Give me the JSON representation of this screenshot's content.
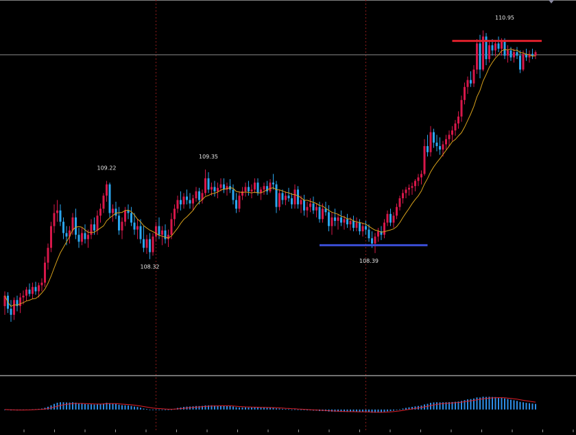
{
  "chart_data": [
    {
      "type": "candlestick",
      "title": "",
      "ylim": [
        107.0,
        111.3
      ],
      "up_color": "#d8174a",
      "down_color": "#2aa6ef",
      "ma_color": "#d9a21b",
      "current_price_line": 110.67,
      "annotations": [
        {
          "text": "109.22",
          "value": 109.22,
          "index": 33,
          "position": "above"
        },
        {
          "text": "108.32",
          "value": 108.32,
          "index": 47,
          "position": "below"
        },
        {
          "text": "109.35",
          "value": 109.35,
          "index": 66,
          "position": "above"
        },
        {
          "text": "108.39",
          "value": 108.39,
          "index": 118,
          "position": "below"
        },
        {
          "text": "110.95",
          "value": 110.95,
          "index": 162,
          "position": "above"
        }
      ],
      "level_lines": [
        {
          "name": "resistance",
          "value": 110.83,
          "from": 145,
          "to": 174,
          "color": "#e0202b"
        },
        {
          "name": "support",
          "value": 108.48,
          "from": 102,
          "to": 137,
          "color": "#3b4ed8"
        }
      ],
      "session_separators": [
        49,
        117
      ],
      "ohlc": [
        [
          107.78,
          107.95,
          107.68,
          107.9
        ],
        [
          107.9,
          107.94,
          107.7,
          107.75
        ],
        [
          107.75,
          107.85,
          107.6,
          107.68
        ],
        [
          107.68,
          107.88,
          107.62,
          107.85
        ],
        [
          107.85,
          107.9,
          107.72,
          107.78
        ],
        [
          107.78,
          107.93,
          107.7,
          107.88
        ],
        [
          107.88,
          107.96,
          107.8,
          107.9
        ],
        [
          107.9,
          108.0,
          107.84,
          107.97
        ],
        [
          107.97,
          108.04,
          107.89,
          107.92
        ],
        [
          107.92,
          108.05,
          107.86,
          108.0
        ],
        [
          108.0,
          108.06,
          107.91,
          107.95
        ],
        [
          107.95,
          108.05,
          107.88,
          108.02
        ],
        [
          108.02,
          108.1,
          107.95,
          108.05
        ],
        [
          108.05,
          108.35,
          108.0,
          108.28
        ],
        [
          108.28,
          108.5,
          108.2,
          108.45
        ],
        [
          108.45,
          108.75,
          108.4,
          108.7
        ],
        [
          108.7,
          108.95,
          108.62,
          108.85
        ],
        [
          108.85,
          109.0,
          108.75,
          108.88
        ],
        [
          108.88,
          108.95,
          108.7,
          108.75
        ],
        [
          108.75,
          108.8,
          108.55,
          108.62
        ],
        [
          108.62,
          108.7,
          108.48,
          108.58
        ],
        [
          108.58,
          108.7,
          108.5,
          108.65
        ],
        [
          108.65,
          108.85,
          108.6,
          108.8
        ],
        [
          108.8,
          108.9,
          108.55,
          108.6
        ],
        [
          108.6,
          108.68,
          108.45,
          108.52
        ],
        [
          108.52,
          108.68,
          108.48,
          108.62
        ],
        [
          108.62,
          108.72,
          108.5,
          108.55
        ],
        [
          108.55,
          108.66,
          108.45,
          108.6
        ],
        [
          108.6,
          108.78,
          108.55,
          108.72
        ],
        [
          108.72,
          108.8,
          108.6,
          108.65
        ],
        [
          108.65,
          108.88,
          108.6,
          108.82
        ],
        [
          108.82,
          108.96,
          108.74,
          108.9
        ],
        [
          108.9,
          109.08,
          108.85,
          109.05
        ],
        [
          109.05,
          109.22,
          108.98,
          109.18
        ],
        [
          109.18,
          109.2,
          108.8,
          108.85
        ],
        [
          108.85,
          108.95,
          108.75,
          108.9
        ],
        [
          108.9,
          108.98,
          108.78,
          108.82
        ],
        [
          108.82,
          108.92,
          108.6,
          108.65
        ],
        [
          108.65,
          108.8,
          108.55,
          108.75
        ],
        [
          108.75,
          108.92,
          108.7,
          108.88
        ],
        [
          108.88,
          108.95,
          108.78,
          108.85
        ],
        [
          108.85,
          108.92,
          108.7,
          108.74
        ],
        [
          108.74,
          108.85,
          108.6,
          108.66
        ],
        [
          108.66,
          108.78,
          108.55,
          108.7
        ],
        [
          108.7,
          108.78,
          108.5,
          108.55
        ],
        [
          108.55,
          108.7,
          108.4,
          108.45
        ],
        [
          108.45,
          108.6,
          108.38,
          108.55
        ],
        [
          108.55,
          108.62,
          108.32,
          108.4
        ],
        [
          108.4,
          108.62,
          108.36,
          108.58
        ],
        [
          108.58,
          108.75,
          108.52,
          108.7
        ],
        [
          108.7,
          108.8,
          108.55,
          108.6
        ],
        [
          108.6,
          108.7,
          108.48,
          108.65
        ],
        [
          108.65,
          108.72,
          108.5,
          108.55
        ],
        [
          108.55,
          108.66,
          108.46,
          108.6
        ],
        [
          108.6,
          108.85,
          108.55,
          108.78
        ],
        [
          108.78,
          108.95,
          108.7,
          108.9
        ],
        [
          108.9,
          109.05,
          108.85,
          109.0
        ],
        [
          109.0,
          109.1,
          108.88,
          108.95
        ],
        [
          108.95,
          109.08,
          108.9,
          109.04
        ],
        [
          109.04,
          109.12,
          108.95,
          109.0
        ],
        [
          109.0,
          109.08,
          108.9,
          108.96
        ],
        [
          108.96,
          109.06,
          108.88,
          109.02
        ],
        [
          109.02,
          109.15,
          108.98,
          109.1
        ],
        [
          109.1,
          109.14,
          108.95,
          109.0
        ],
        [
          109.0,
          109.12,
          108.96,
          109.08
        ],
        [
          109.08,
          109.35,
          109.05,
          109.25
        ],
        [
          109.25,
          109.32,
          109.08,
          109.12
        ],
        [
          109.12,
          109.2,
          109.05,
          109.15
        ],
        [
          109.15,
          109.22,
          109.04,
          109.1
        ],
        [
          109.1,
          109.2,
          109.02,
          109.14
        ],
        [
          109.14,
          109.25,
          109.1,
          109.18
        ],
        [
          109.18,
          109.25,
          109.08,
          109.12
        ],
        [
          109.12,
          109.2,
          109.05,
          109.16
        ],
        [
          109.16,
          109.24,
          109.08,
          109.12
        ],
        [
          109.12,
          109.18,
          108.95,
          109.0
        ],
        [
          109.0,
          109.08,
          108.85,
          108.9
        ],
        [
          108.9,
          109.1,
          108.86,
          109.05
        ],
        [
          109.05,
          109.15,
          109.0,
          109.1
        ],
        [
          109.1,
          109.2,
          109.04,
          109.15
        ],
        [
          109.15,
          109.22,
          109.05,
          109.1
        ],
        [
          109.1,
          109.18,
          109.02,
          109.12
        ],
        [
          109.12,
          109.25,
          109.08,
          109.2
        ],
        [
          109.2,
          109.25,
          109.05,
          109.08
        ],
        [
          109.08,
          109.15,
          109.0,
          109.12
        ],
        [
          109.12,
          109.2,
          109.06,
          109.16
        ],
        [
          109.16,
          109.22,
          109.06,
          109.1
        ],
        [
          109.1,
          109.24,
          109.08,
          109.2
        ],
        [
          109.2,
          109.3,
          109.12,
          109.18
        ],
        [
          109.18,
          109.22,
          108.85,
          108.92
        ],
        [
          108.92,
          109.12,
          108.88,
          109.08
        ],
        [
          109.08,
          109.12,
          108.95,
          109.0
        ],
        [
          109.0,
          109.1,
          108.94,
          109.05
        ],
        [
          109.05,
          109.14,
          108.98,
          109.02
        ],
        [
          109.02,
          109.08,
          108.9,
          108.95
        ],
        [
          108.95,
          109.18,
          108.9,
          109.12
        ],
        [
          109.12,
          109.16,
          108.9,
          108.95
        ],
        [
          108.95,
          109.05,
          108.85,
          109.0
        ],
        [
          109.0,
          109.06,
          108.82,
          108.88
        ],
        [
          108.88,
          108.98,
          108.8,
          108.92
        ],
        [
          108.92,
          109.02,
          108.86,
          108.96
        ],
        [
          108.96,
          109.04,
          108.84,
          108.88
        ],
        [
          108.88,
          108.96,
          108.8,
          108.92
        ],
        [
          108.92,
          108.98,
          108.74,
          108.78
        ],
        [
          108.78,
          108.96,
          108.74,
          108.9
        ],
        [
          108.9,
          108.98,
          108.82,
          108.86
        ],
        [
          108.86,
          108.94,
          108.64,
          108.7
        ],
        [
          108.7,
          108.86,
          108.6,
          108.8
        ],
        [
          108.8,
          108.9,
          108.7,
          108.76
        ],
        [
          108.76,
          108.84,
          108.66,
          108.8
        ],
        [
          108.8,
          108.88,
          108.7,
          108.74
        ],
        [
          108.74,
          108.82,
          108.66,
          108.78
        ],
        [
          108.78,
          108.84,
          108.68,
          108.72
        ],
        [
          108.72,
          108.8,
          108.65,
          108.76
        ],
        [
          108.76,
          108.82,
          108.64,
          108.68
        ],
        [
          108.68,
          108.8,
          108.64,
          108.74
        ],
        [
          108.74,
          108.78,
          108.6,
          108.64
        ],
        [
          108.64,
          108.74,
          108.58,
          108.7
        ],
        [
          108.7,
          108.76,
          108.6,
          108.66
        ],
        [
          108.66,
          108.72,
          108.52,
          108.56
        ],
        [
          108.56,
          108.64,
          108.45,
          108.5
        ],
        [
          108.5,
          108.62,
          108.39,
          108.58
        ],
        [
          108.58,
          108.68,
          108.52,
          108.64
        ],
        [
          108.64,
          108.7,
          108.54,
          108.6
        ],
        [
          108.6,
          108.78,
          108.56,
          108.74
        ],
        [
          108.74,
          108.88,
          108.7,
          108.84
        ],
        [
          108.84,
          108.9,
          108.7,
          108.74
        ],
        [
          108.74,
          108.86,
          108.68,
          108.82
        ],
        [
          108.82,
          108.96,
          108.78,
          108.92
        ],
        [
          108.92,
          109.05,
          108.88,
          109.02
        ],
        [
          109.02,
          109.12,
          108.96,
          109.08
        ],
        [
          109.08,
          109.15,
          109.02,
          109.12
        ],
        [
          109.12,
          109.18,
          109.05,
          109.14
        ],
        [
          109.14,
          109.2,
          109.06,
          109.16
        ],
        [
          109.16,
          109.24,
          109.1,
          109.22
        ],
        [
          109.22,
          109.3,
          109.16,
          109.26
        ],
        [
          109.26,
          109.34,
          109.18,
          109.3
        ],
        [
          109.3,
          109.7,
          109.28,
          109.62
        ],
        [
          109.62,
          109.75,
          109.5,
          109.55
        ],
        [
          109.55,
          109.85,
          109.5,
          109.78
        ],
        [
          109.78,
          109.82,
          109.6,
          109.66
        ],
        [
          109.66,
          109.75,
          109.56,
          109.62
        ],
        [
          109.62,
          109.72,
          109.52,
          109.58
        ],
        [
          109.58,
          109.68,
          109.5,
          109.64
        ],
        [
          109.64,
          109.75,
          109.58,
          109.7
        ],
        [
          109.7,
          109.8,
          109.62,
          109.75
        ],
        [
          109.75,
          109.85,
          109.68,
          109.8
        ],
        [
          109.8,
          109.92,
          109.74,
          109.88
        ],
        [
          109.88,
          110.02,
          109.82,
          109.96
        ],
        [
          109.96,
          110.2,
          109.9,
          110.15
        ],
        [
          110.15,
          110.35,
          110.1,
          110.3
        ],
        [
          110.3,
          110.42,
          110.22,
          110.38
        ],
        [
          110.38,
          110.48,
          110.3,
          110.34
        ],
        [
          110.34,
          110.55,
          110.3,
          110.5
        ],
        [
          110.5,
          110.85,
          110.45,
          110.8
        ],
        [
          110.8,
          110.9,
          110.4,
          110.5
        ],
        [
          110.5,
          110.95,
          110.48,
          110.88
        ],
        [
          110.88,
          110.92,
          110.55,
          110.62
        ],
        [
          110.62,
          110.82,
          110.58,
          110.78
        ],
        [
          110.78,
          110.85,
          110.66,
          110.72
        ],
        [
          110.72,
          110.84,
          110.65,
          110.8
        ],
        [
          110.8,
          110.88,
          110.7,
          110.74
        ],
        [
          110.74,
          110.86,
          110.66,
          110.82
        ],
        [
          110.82,
          110.86,
          110.62,
          110.66
        ],
        [
          110.66,
          110.78,
          110.58,
          110.72
        ],
        [
          110.72,
          110.76,
          110.6,
          110.64
        ],
        [
          110.64,
          110.74,
          110.58,
          110.7
        ],
        [
          110.7,
          110.76,
          110.62,
          110.66
        ],
        [
          110.66,
          110.72,
          110.46,
          110.5
        ],
        [
          110.5,
          110.72,
          110.48,
          110.68
        ],
        [
          110.68,
          110.74,
          110.6,
          110.64
        ],
        [
          110.64,
          110.72,
          110.58,
          110.68
        ],
        [
          110.68,
          110.74,
          110.62,
          110.66
        ],
        [
          110.66,
          110.72,
          110.62,
          110.7
        ]
      ]
    },
    {
      "type": "histogram",
      "indicator": "oscillator",
      "bar_color": "#2f8fe8",
      "signal_color": "#e0202b",
      "ylim": [
        -0.6,
        1.0
      ]
    }
  ]
}
